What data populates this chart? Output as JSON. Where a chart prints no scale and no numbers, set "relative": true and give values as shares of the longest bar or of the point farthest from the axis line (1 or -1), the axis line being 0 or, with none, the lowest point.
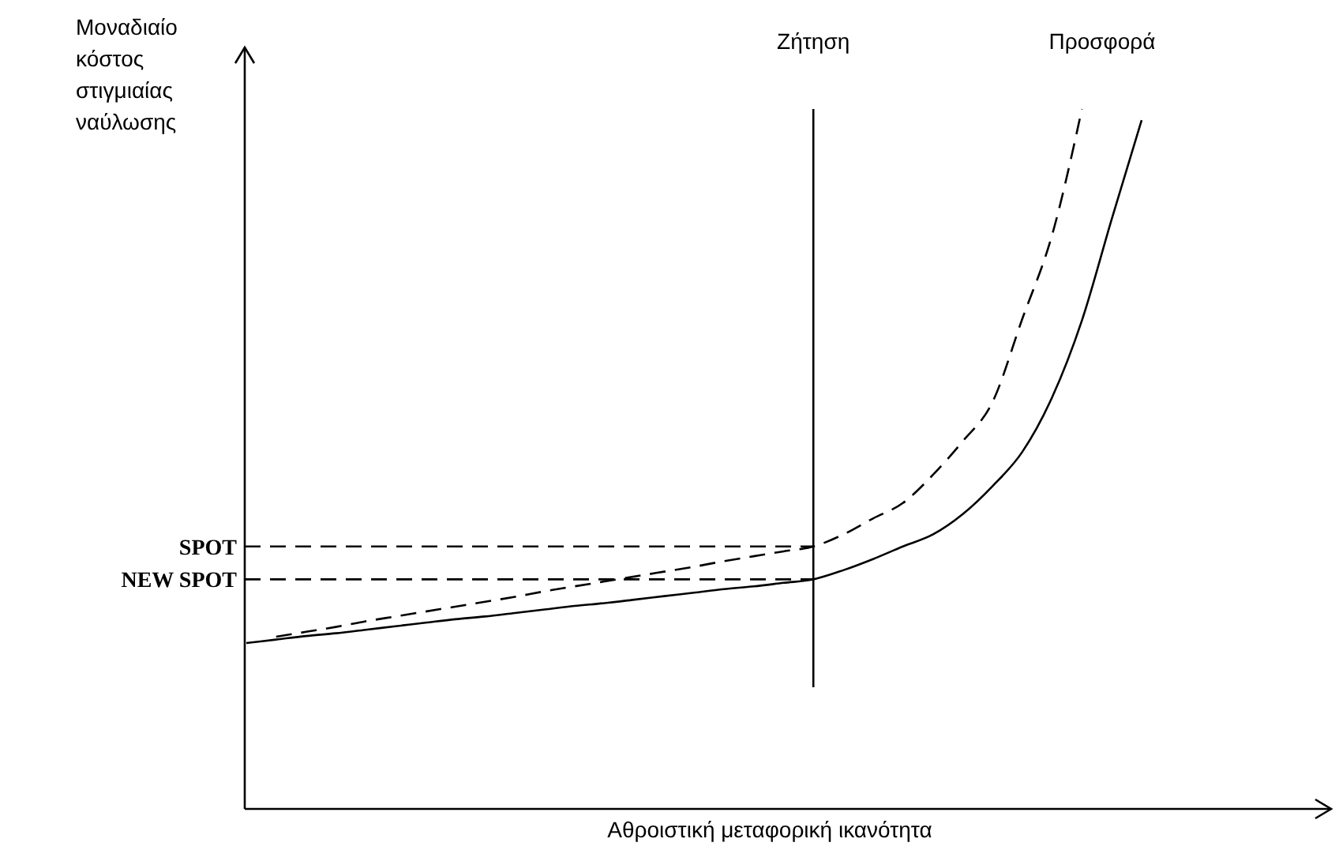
{
  "chart_data": {
    "type": "line",
    "relative": true,
    "xlabel": "Αθροιστική μεταφορική ικανότητα",
    "ylabel": "Μοναδιαίο κόστος στιγμιαίας ναύλωσης",
    "categories": [
      null,
      null,
      null,
      null,
      null,
      null,
      null,
      null,
      null,
      null,
      null,
      null,
      null,
      null,
      null,
      null,
      null,
      null,
      null,
      null,
      null,
      null,
      null,
      null,
      null,
      null,
      null,
      null,
      null,
      null,
      null
    ],
    "series": [
      {
        "color": "#000000",
        "line_style": "solid",
        "values": [
          0.237,
          0.242,
          0.247,
          0.251,
          0.256,
          0.261,
          0.266,
          0.271,
          0.275,
          0.28,
          0.285,
          0.29,
          0.294,
          0.299,
          0.304,
          0.309,
          0.314,
          0.318,
          0.323,
          0.328,
          0.341,
          0.357,
          0.375,
          0.392,
          0.421,
          0.461,
          0.51,
          0.588,
          0.698,
          0.843,
          0.984
        ]
      },
      {
        "color": "#000000",
        "line_style": "dashed",
        "values": [
          null,
          0.246,
          0.253,
          0.26,
          0.268,
          0.275,
          0.282,
          0.289,
          0.296,
          0.303,
          0.311,
          0.318,
          0.325,
          0.332,
          0.339,
          0.346,
          0.354,
          0.361,
          0.368,
          0.375,
          0.392,
          0.415,
          0.437,
          0.477,
          0.525,
          0.581,
          0.7,
          0.82,
          1.0,
          null,
          null
        ]
      }
    ],
    "ref_lines": [
      {
        "axis": "y",
        "value": 0.375,
        "label": "SPOT",
        "line_style": "dashed"
      },
      {
        "axis": "y",
        "value": 0.328,
        "label": "NEW SPOT",
        "line_style": "dashed"
      }
    ],
    "annotations": [
      "Ζήτηση",
      "Προσφορά"
    ],
    "marker": "none"
  }
}
